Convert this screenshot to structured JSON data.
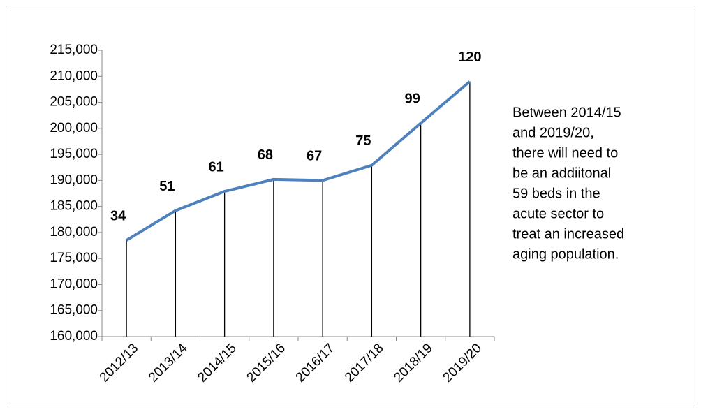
{
  "chart_data": {
    "type": "line",
    "categories": [
      "2012/13",
      "2013/14",
      "2014/15",
      "2015/16",
      "2016/17",
      "2017/18",
      "2018/19",
      "2019/20"
    ],
    "series": [
      {
        "color": "#4f81bd",
        "values": [
          178500,
          184200,
          187900,
          190200,
          190000,
          192900,
          201000,
          209000
        ]
      }
    ],
    "data_labels": [
      34,
      51,
      61,
      68,
      67,
      75,
      99,
      120
    ],
    "ylim": [
      160000,
      215000
    ],
    "yticks": [
      {
        "value": 160000,
        "label": "160,000"
      },
      {
        "value": 165000,
        "label": "165,000"
      },
      {
        "value": 170000,
        "label": "170,000"
      },
      {
        "value": 175000,
        "label": "175,000"
      },
      {
        "value": 180000,
        "label": "180,000"
      },
      {
        "value": 185000,
        "label": "185,000"
      },
      {
        "value": 190000,
        "label": "190,000"
      },
      {
        "value": 195000,
        "label": "195,000"
      },
      {
        "value": 200000,
        "label": "200,000"
      },
      {
        "value": 205000,
        "label": "205,000"
      },
      {
        "value": 210000,
        "label": "210,000"
      },
      {
        "value": 215000,
        "label": "215,000"
      }
    ],
    "drop_lines": true,
    "annotation": [
      "Between 2014/15",
      "and 2019/20,",
      "there will need to",
      "be an addiitonal",
      "59 beds in the",
      "acute sector to",
      "treat an increased",
      "aging population."
    ]
  }
}
